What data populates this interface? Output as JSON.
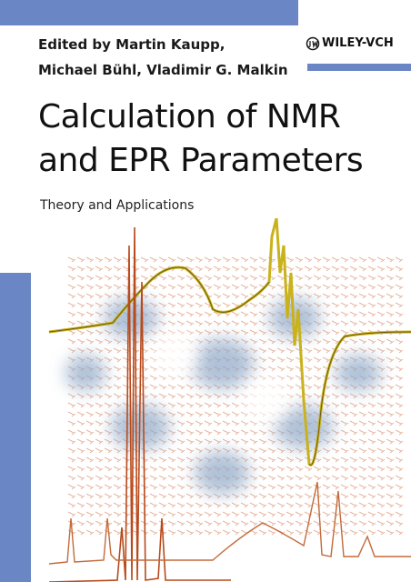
{
  "header": {
    "editors": [
      "Edited by Martin Kaupp,",
      "Michael Bühl, Vladimir G. Malkin"
    ],
    "publisher": "WILEY-VCH"
  },
  "title": [
    "Calculation of NMR",
    "and EPR Parameters"
  ],
  "subtitle": "Theory and Applications"
}
